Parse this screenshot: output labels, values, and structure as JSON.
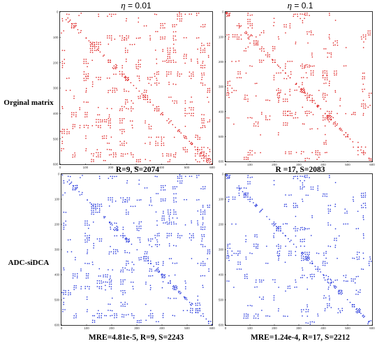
{
  "columns": [
    {
      "eta_symbol": "η",
      "eta_value": " = 0.01"
    },
    {
      "eta_symbol": "η",
      "eta_value": " = 0.1"
    }
  ],
  "rows": [
    {
      "label": "Orginal matrix",
      "color": "#dd1c1c"
    },
    {
      "label": "ADC-siDCA",
      "color": "#1c2fd9"
    }
  ],
  "captions": [
    "R=9, S=2074",
    "R =17, S=2083",
    "MRE=4.81e-5, R=9, S=2243",
    "MRE=1.24e-4, R=17, S=2212"
  ],
  "chart_data": [
    {
      "type": "scatter",
      "title": "η = 0.01",
      "row": "Orginal matrix",
      "xlim": [
        0,
        600
      ],
      "ylim": [
        0,
        600
      ],
      "xticks": [
        "0",
        "100",
        "200",
        "300",
        "400",
        "500",
        "600"
      ],
      "yticks": [
        "0",
        "100",
        "200",
        "300",
        "400",
        "500",
        "600"
      ],
      "color": "#dd1c1c",
      "seed": 11,
      "density": 0.3,
      "rank": 9,
      "annotation": "R=9, S=2074"
    },
    {
      "type": "scatter",
      "title": "η = 0.1",
      "row": "Orginal matrix",
      "xlim": [
        0,
        600
      ],
      "ylim": [
        0,
        600
      ],
      "xticks": [
        "0",
        "100",
        "200",
        "300",
        "400",
        "500",
        "600"
      ],
      "yticks": [
        "0",
        "100",
        "200",
        "300",
        "400",
        "500",
        "600"
      ],
      "color": "#dd1c1c",
      "seed": 23,
      "density": 0.22,
      "rank": 17,
      "annotation": "R =17, S=2083"
    },
    {
      "type": "scatter",
      "title": "η = 0.01",
      "row": "ADC-siDCA",
      "xlim": [
        0,
        600
      ],
      "ylim": [
        0,
        600
      ],
      "xticks": [
        "0",
        "100",
        "200",
        "300",
        "400",
        "500",
        "600"
      ],
      "yticks": [
        "0",
        "100",
        "200",
        "300",
        "400",
        "500",
        "600"
      ],
      "color": "#1c2fd9",
      "seed": 11,
      "density": 0.32,
      "rank": 9,
      "annotation": "MRE=4.81e-5, R=9, S=2243"
    },
    {
      "type": "scatter",
      "title": "η = 0.1",
      "row": "ADC-siDCA",
      "xlim": [
        0,
        600
      ],
      "ylim": [
        0,
        600
      ],
      "xticks": [
        "0",
        "100",
        "200",
        "300",
        "400",
        "500",
        "600"
      ],
      "yticks": [
        "0",
        "100",
        "200",
        "300",
        "400",
        "500",
        "600"
      ],
      "color": "#1c2fd9",
      "seed": 23,
      "density": 0.24,
      "rank": 17,
      "annotation": "MRE=1.24e-4, R=17, S=2212"
    }
  ]
}
